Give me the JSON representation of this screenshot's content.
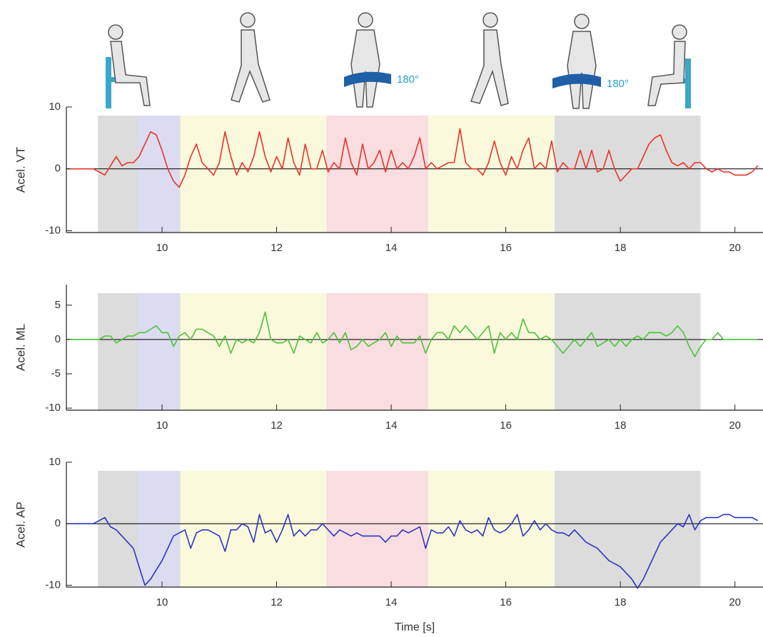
{
  "illustrations": {
    "turn_labels": [
      "180°",
      "180°"
    ]
  },
  "chart_data": [
    {
      "type": "line",
      "y_label": "Acel. VT",
      "xlim": [
        8.33,
        20.49
      ],
      "ylim": [
        -10.3,
        10
      ],
      "xticks": [
        10,
        12,
        14,
        16,
        18,
        20
      ],
      "yticks": [
        -10,
        0,
        10
      ],
      "zero_line": true,
      "spans": [
        {
          "start": 8.88,
          "end": 9.57,
          "color": "#dcdcdc"
        },
        {
          "start": 9.57,
          "end": 10.32,
          "color": "#dcdcf0"
        },
        {
          "start": 10.32,
          "end": 12.87,
          "color": "#fbf9dc"
        },
        {
          "start": 12.87,
          "end": 14.65,
          "color": "#f9dde0"
        },
        {
          "start": 14.65,
          "end": 16.85,
          "color": "#fbf9dc"
        },
        {
          "start": 16.85,
          "end": 19.4,
          "color": "#dcdcdc"
        }
      ],
      "x": [
        8.4,
        8.5,
        8.6,
        8.7,
        8.8,
        8.9,
        9.0,
        9.1,
        9.2,
        9.3,
        9.4,
        9.5,
        9.6,
        9.7,
        9.8,
        9.9,
        10.0,
        10.1,
        10.2,
        10.3,
        10.4,
        10.5,
        10.6,
        10.7,
        10.8,
        10.9,
        11.0,
        11.1,
        11.2,
        11.3,
        11.4,
        11.5,
        11.6,
        11.7,
        11.8,
        11.9,
        12.0,
        12.1,
        12.2,
        12.3,
        12.4,
        12.5,
        12.6,
        12.7,
        12.8,
        12.9,
        13.0,
        13.1,
        13.2,
        13.3,
        13.4,
        13.5,
        13.6,
        13.7,
        13.8,
        13.9,
        14.0,
        14.1,
        14.2,
        14.3,
        14.4,
        14.5,
        14.6,
        14.7,
        14.8,
        14.9,
        15.0,
        15.1,
        15.2,
        15.3,
        15.4,
        15.5,
        15.6,
        15.7,
        15.8,
        15.9,
        16.0,
        16.1,
        16.2,
        16.3,
        16.4,
        16.5,
        16.6,
        16.7,
        16.8,
        16.9,
        17.0,
        17.1,
        17.2,
        17.3,
        17.4,
        17.5,
        17.6,
        17.7,
        17.8,
        17.9,
        18.0,
        18.1,
        18.2,
        18.3,
        18.4,
        18.5,
        18.6,
        18.7,
        18.8,
        18.9,
        19.0,
        19.1,
        19.2,
        19.3,
        19.4,
        19.5,
        19.6,
        19.7,
        19.8,
        19.9,
        20.0,
        20.1,
        20.2,
        20.3,
        20.4
      ],
      "series": [
        {
          "color": "#e8322a",
          "values": [
            0,
            0,
            0,
            0,
            0,
            -0.5,
            -1,
            0.5,
            2,
            0.5,
            1,
            1,
            2,
            4,
            6,
            5.5,
            3,
            0,
            -2,
            -3,
            -1,
            2,
            4,
            1,
            0,
            -1,
            1,
            6,
            2,
            -1,
            1,
            -0.5,
            2,
            6,
            2,
            -0.5,
            2,
            0,
            5,
            1,
            -1,
            4,
            0,
            0,
            3,
            -0.5,
            1,
            0,
            5,
            1,
            -1,
            4,
            0,
            1,
            3,
            -0.5,
            3,
            0,
            1,
            0,
            2,
            5,
            0,
            1,
            0,
            0.5,
            1,
            1,
            6.5,
            1,
            0,
            0,
            -1,
            1,
            4.5,
            1,
            -1,
            2,
            0,
            3,
            5,
            0,
            1,
            0,
            4.5,
            -0.5,
            1,
            0,
            0,
            3,
            0,
            3,
            -0.5,
            0,
            3,
            0,
            -2,
            -1,
            0,
            0,
            2,
            4,
            5,
            5.5,
            3,
            1,
            0.5,
            1,
            0,
            1,
            1,
            0,
            -0.5,
            0,
            -0.5,
            -0.5,
            -1,
            -1,
            -1,
            -0.5,
            0.5
          ]
        }
      ]
    },
    {
      "type": "line",
      "y_label": "Acel. ML",
      "xlim": [
        8.33,
        20.49
      ],
      "ylim": [
        -10.3,
        8
      ],
      "xticks": [
        10,
        12,
        14,
        16,
        18,
        20
      ],
      "yticks": [
        -10,
        -5,
        0,
        5
      ],
      "zero_line": true,
      "spans": [
        {
          "start": 8.88,
          "end": 9.57,
          "color": "#dcdcdc"
        },
        {
          "start": 9.57,
          "end": 10.32,
          "color": "#dcdcf0"
        },
        {
          "start": 10.32,
          "end": 12.87,
          "color": "#fbf9dc"
        },
        {
          "start": 12.87,
          "end": 14.65,
          "color": "#f9dde0"
        },
        {
          "start": 14.65,
          "end": 16.85,
          "color": "#fbf9dc"
        },
        {
          "start": 16.85,
          "end": 19.4,
          "color": "#dcdcdc"
        }
      ],
      "x": [
        8.4,
        8.5,
        8.6,
        8.7,
        8.8,
        8.9,
        9.0,
        9.1,
        9.2,
        9.3,
        9.4,
        9.5,
        9.6,
        9.7,
        9.8,
        9.9,
        10.0,
        10.1,
        10.2,
        10.3,
        10.4,
        10.5,
        10.6,
        10.7,
        10.8,
        10.9,
        11.0,
        11.1,
        11.2,
        11.3,
        11.4,
        11.5,
        11.6,
        11.7,
        11.8,
        11.9,
        12.0,
        12.1,
        12.2,
        12.3,
        12.4,
        12.5,
        12.6,
        12.7,
        12.8,
        12.9,
        13.0,
        13.1,
        13.2,
        13.3,
        13.4,
        13.5,
        13.6,
        13.7,
        13.8,
        13.9,
        14.0,
        14.1,
        14.2,
        14.3,
        14.4,
        14.5,
        14.6,
        14.7,
        14.8,
        14.9,
        15.0,
        15.1,
        15.2,
        15.3,
        15.4,
        15.5,
        15.6,
        15.7,
        15.8,
        15.9,
        16.0,
        16.1,
        16.2,
        16.3,
        16.4,
        16.5,
        16.6,
        16.7,
        16.8,
        16.9,
        17.0,
        17.1,
        17.2,
        17.3,
        17.4,
        17.5,
        17.6,
        17.7,
        17.8,
        17.9,
        18.0,
        18.1,
        18.2,
        18.3,
        18.4,
        18.5,
        18.6,
        18.7,
        18.8,
        18.9,
        19.0,
        19.1,
        19.2,
        19.3,
        19.4,
        19.5,
        19.6,
        19.7,
        19.8,
        19.9,
        20.0,
        20.1,
        20.2,
        20.3,
        20.4
      ],
      "series": [
        {
          "color": "#4cc23a",
          "values": [
            0,
            0,
            0,
            0,
            0,
            0,
            0.5,
            0.5,
            -0.5,
            0,
            0.5,
            0.5,
            1,
            1,
            1.5,
            2,
            1,
            1,
            -1,
            0.5,
            1,
            0,
            1.5,
            1.5,
            1,
            0.5,
            -1,
            0.5,
            -2,
            0,
            -0.5,
            0,
            -0.5,
            1,
            4,
            0,
            -0.5,
            -0.5,
            0,
            -2,
            0.5,
            0,
            -0.5,
            1,
            -0.5,
            0,
            1,
            -0.5,
            1,
            -1.5,
            -1,
            0,
            -1,
            -0.5,
            0,
            1,
            -1,
            0.5,
            -0.5,
            -0.5,
            -0.5,
            0.5,
            -2,
            0,
            1,
            1,
            0,
            2,
            1,
            2,
            1,
            0,
            1,
            2,
            -2,
            1,
            0,
            1,
            0,
            3,
            1,
            1,
            0,
            0.5,
            0,
            -1,
            -2,
            -1,
            0,
            -1,
            0,
            1,
            -1,
            -0.5,
            0,
            -1,
            0,
            -1,
            0,
            0.5,
            0,
            1,
            1,
            1,
            0.5,
            1,
            2,
            1,
            -1,
            -2.5,
            -1,
            0,
            0,
            1,
            0,
            0,
            0,
            0,
            0,
            0,
            0
          ]
        }
      ]
    },
    {
      "type": "line",
      "y_label": "Acel. AP",
      "x_label": "Time [s]",
      "xlim": [
        8.33,
        20.49
      ],
      "ylim": [
        -10.3,
        10
      ],
      "xticks": [
        10,
        12,
        14,
        16,
        18,
        20
      ],
      "yticks": [
        -10,
        0,
        10
      ],
      "zero_line": true,
      "spans": [
        {
          "start": 8.88,
          "end": 9.57,
          "color": "#dcdcdc"
        },
        {
          "start": 9.57,
          "end": 10.32,
          "color": "#dcdcf0"
        },
        {
          "start": 10.32,
          "end": 12.87,
          "color": "#fbf9dc"
        },
        {
          "start": 12.87,
          "end": 14.65,
          "color": "#f9dde0"
        },
        {
          "start": 14.65,
          "end": 16.85,
          "color": "#fbf9dc"
        },
        {
          "start": 16.85,
          "end": 19.4,
          "color": "#dcdcdc"
        }
      ],
      "x": [
        8.4,
        8.5,
        8.6,
        8.7,
        8.8,
        8.9,
        9.0,
        9.1,
        9.2,
        9.3,
        9.4,
        9.5,
        9.6,
        9.7,
        9.8,
        9.9,
        10.0,
        10.1,
        10.2,
        10.3,
        10.4,
        10.5,
        10.6,
        10.7,
        10.8,
        10.9,
        11.0,
        11.1,
        11.2,
        11.3,
        11.4,
        11.5,
        11.6,
        11.7,
        11.8,
        11.9,
        12.0,
        12.1,
        12.2,
        12.3,
        12.4,
        12.5,
        12.6,
        12.7,
        12.8,
        12.9,
        13.0,
        13.1,
        13.2,
        13.3,
        13.4,
        13.5,
        13.6,
        13.7,
        13.8,
        13.9,
        14.0,
        14.1,
        14.2,
        14.3,
        14.4,
        14.5,
        14.6,
        14.7,
        14.8,
        14.9,
        15.0,
        15.1,
        15.2,
        15.3,
        15.4,
        15.5,
        15.6,
        15.7,
        15.8,
        15.9,
        16.0,
        16.1,
        16.2,
        16.3,
        16.4,
        16.5,
        16.6,
        16.7,
        16.8,
        16.9,
        17.0,
        17.1,
        17.2,
        17.3,
        17.4,
        17.5,
        17.6,
        17.7,
        17.8,
        17.9,
        18.0,
        18.1,
        18.2,
        18.3,
        18.4,
        18.5,
        18.6,
        18.7,
        18.8,
        18.9,
        19.0,
        19.1,
        19.2,
        19.3,
        19.4,
        19.5,
        19.6,
        19.7,
        19.8,
        19.9,
        20.0,
        20.1,
        20.2,
        20.3,
        20.4
      ],
      "series": [
        {
          "color": "#2a35c4",
          "values": [
            0,
            0,
            0,
            0,
            0,
            0.5,
            1,
            -0.5,
            -1,
            -2,
            -3,
            -4,
            -7,
            -10,
            -9,
            -7.5,
            -6,
            -4,
            -2,
            -1.5,
            -1,
            -4,
            -1.5,
            -1,
            -1,
            -1.5,
            -2,
            -4.5,
            -1,
            -1,
            0,
            -0.5,
            -3,
            1.5,
            -1.5,
            -1,
            -3,
            -1,
            1.5,
            -2,
            -1,
            -2,
            -1,
            -1,
            0,
            -1,
            -2,
            -1,
            -1.5,
            -2,
            -1.5,
            -2,
            -2,
            -2,
            -2,
            -3,
            -2,
            -2,
            -1,
            -1.5,
            -1,
            -0.5,
            -4,
            -1,
            -1.5,
            -1.5,
            -0.5,
            -2,
            0.5,
            -1,
            -1.5,
            -1,
            -2,
            1,
            -1,
            -1.5,
            -1,
            0,
            1.5,
            -2,
            -1,
            0.5,
            -1,
            0,
            -1,
            -1.5,
            -1.5,
            -2,
            -1,
            -2,
            -3,
            -3.5,
            -4,
            -5,
            -6,
            -6.5,
            -7,
            -8,
            -9,
            -10.5,
            -9,
            -7,
            -5,
            -3,
            -2,
            -1,
            0,
            -0.5,
            1.5,
            -1,
            0.5,
            1,
            1,
            1,
            1.5,
            1.5,
            1,
            1,
            1,
            1,
            0.5
          ]
        }
      ]
    }
  ]
}
